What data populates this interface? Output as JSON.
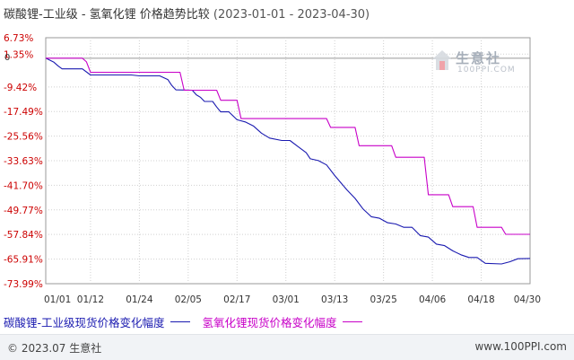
{
  "title": {
    "main": "碳酸锂-工业级 - 氢氧化锂 价格趋势比较",
    "date_range": "(2023-01-01 - 2023-04-30)"
  },
  "logo": {
    "name": "生意社",
    "url": "100PPI.COM"
  },
  "footer": {
    "left": "© 2023.07 生意社",
    "right": "www.100PPI.com"
  },
  "colors": {
    "series1": "#1a1ab0",
    "series2": "#c800c8",
    "grid": "#d0d0d0",
    "zero_line": "#999999"
  },
  "chart_data": {
    "type": "line",
    "title": "碳酸锂-工业级 - 氢氧化锂 价格趋势比较",
    "subtitle": "(2023-01-01 - 2023-04-30)",
    "x_range": [
      "2023-01-01",
      "2023-04-30"
    ],
    "x_ticks": [
      {
        "date": "2023-01-01",
        "label": "01/01"
      },
      {
        "date": "2023-01-12",
        "label": "01/12"
      },
      {
        "date": "2023-01-24",
        "label": "01/24"
      },
      {
        "date": "2023-02-05",
        "label": "02/05"
      },
      {
        "date": "2023-02-17",
        "label": "02/17"
      },
      {
        "date": "2023-03-01",
        "label": "03/01"
      },
      {
        "date": "2023-03-13",
        "label": "03/13"
      },
      {
        "date": "2023-03-25",
        "label": "03/25"
      },
      {
        "date": "2023-04-06",
        "label": "04/06"
      },
      {
        "date": "2023-04-18",
        "label": "04/18"
      },
      {
        "date": "2023-04-30",
        "label": "04/30"
      }
    ],
    "y_ticks": [
      6.73,
      1.35,
      -9.42,
      -17.49,
      -25.56,
      -33.63,
      -41.7,
      -49.77,
      -57.84,
      -65.91,
      -73.99
    ],
    "y_tick_labels": [
      "6.73%",
      "1.35%",
      "-9.42%",
      "-17.49%",
      "-25.56%",
      "-33.63%",
      "-41.70%",
      "-49.77%",
      "-57.84%",
      "-65.91%",
      "-73.99%"
    ],
    "zero_label": "0",
    "ylim": [
      -73.99,
      6.73
    ],
    "grid": true,
    "legend_position": "bottom",
    "series": [
      {
        "name": "碳酸锂-工业级现货价格变化幅度",
        "color": "#1a1ab0",
        "points": [
          [
            "2023-01-01",
            0.0
          ],
          [
            "2023-01-03",
            -1.3
          ],
          [
            "2023-01-04",
            -2.5
          ],
          [
            "2023-01-05",
            -3.5
          ],
          [
            "2023-01-10",
            -3.5
          ],
          [
            "2023-01-12",
            -5.5
          ],
          [
            "2023-01-22",
            -5.5
          ],
          [
            "2023-01-24",
            -5.8
          ],
          [
            "2023-01-29",
            -5.8
          ],
          [
            "2023-01-31",
            -7.0
          ],
          [
            "2023-02-01",
            -9.0
          ],
          [
            "2023-02-02",
            -10.4
          ],
          [
            "2023-02-06",
            -10.5
          ],
          [
            "2023-02-07",
            -12.0
          ],
          [
            "2023-02-08",
            -12.8
          ],
          [
            "2023-02-09",
            -14.2
          ],
          [
            "2023-02-11",
            -14.2
          ],
          [
            "2023-02-12",
            -16.0
          ],
          [
            "2023-02-13",
            -17.6
          ],
          [
            "2023-02-15",
            -17.6
          ],
          [
            "2023-02-17",
            -20.2
          ],
          [
            "2023-02-19",
            -20.9
          ],
          [
            "2023-02-21",
            -22.2
          ],
          [
            "2023-02-23",
            -24.6
          ],
          [
            "2023-02-25",
            -26.2
          ],
          [
            "2023-02-28",
            -27.0
          ],
          [
            "2023-03-02",
            -27.0
          ],
          [
            "2023-03-04",
            -29.0
          ],
          [
            "2023-03-06",
            -31.0
          ],
          [
            "2023-03-07",
            -33.0
          ],
          [
            "2023-03-09",
            -33.6
          ],
          [
            "2023-03-11",
            -35.0
          ],
          [
            "2023-03-13",
            -38.5
          ],
          [
            "2023-03-16",
            -43.2
          ],
          [
            "2023-03-18",
            -46.0
          ],
          [
            "2023-03-20",
            -49.5
          ],
          [
            "2023-03-22",
            -52.0
          ],
          [
            "2023-03-24",
            -52.5
          ],
          [
            "2023-03-26",
            -54.0
          ],
          [
            "2023-03-28",
            -54.4
          ],
          [
            "2023-03-30",
            -55.5
          ],
          [
            "2023-04-01",
            -55.5
          ],
          [
            "2023-04-03",
            -58.2
          ],
          [
            "2023-04-05",
            -58.7
          ],
          [
            "2023-04-07",
            -61.0
          ],
          [
            "2023-04-09",
            -61.5
          ],
          [
            "2023-04-11",
            -63.2
          ],
          [
            "2023-04-13",
            -64.5
          ],
          [
            "2023-04-15",
            -65.4
          ],
          [
            "2023-04-17",
            -65.4
          ],
          [
            "2023-04-19",
            -67.3
          ],
          [
            "2023-04-23",
            -67.5
          ],
          [
            "2023-04-25",
            -66.8
          ],
          [
            "2023-04-27",
            -65.8
          ],
          [
            "2023-04-30",
            -65.7
          ]
        ]
      },
      {
        "name": "氢氧化锂现货价格变化幅度",
        "color": "#c800c8",
        "points": [
          [
            "2023-01-01",
            0.0
          ],
          [
            "2023-01-10",
            0.0
          ],
          [
            "2023-01-11",
            -1.2
          ],
          [
            "2023-01-12",
            -4.6
          ],
          [
            "2023-01-20",
            -4.6
          ],
          [
            "2023-02-03",
            -4.6
          ],
          [
            "2023-02-04",
            -10.5
          ],
          [
            "2023-02-12",
            -10.5
          ],
          [
            "2023-02-13",
            -13.8
          ],
          [
            "2023-02-17",
            -13.8
          ],
          [
            "2023-02-18",
            -19.8
          ],
          [
            "2023-03-11",
            -19.8
          ],
          [
            "2023-03-12",
            -22.7
          ],
          [
            "2023-03-18",
            -22.7
          ],
          [
            "2023-03-19",
            -28.7
          ],
          [
            "2023-03-27",
            -28.7
          ],
          [
            "2023-03-28",
            -32.5
          ],
          [
            "2023-04-04",
            -32.5
          ],
          [
            "2023-04-05",
            -44.8
          ],
          [
            "2023-04-10",
            -44.8
          ],
          [
            "2023-04-11",
            -48.7
          ],
          [
            "2023-04-16",
            -48.7
          ],
          [
            "2023-04-17",
            -55.5
          ],
          [
            "2023-04-23",
            -55.5
          ],
          [
            "2023-04-24",
            -57.8
          ],
          [
            "2023-04-30",
            -57.8
          ]
        ]
      }
    ]
  }
}
